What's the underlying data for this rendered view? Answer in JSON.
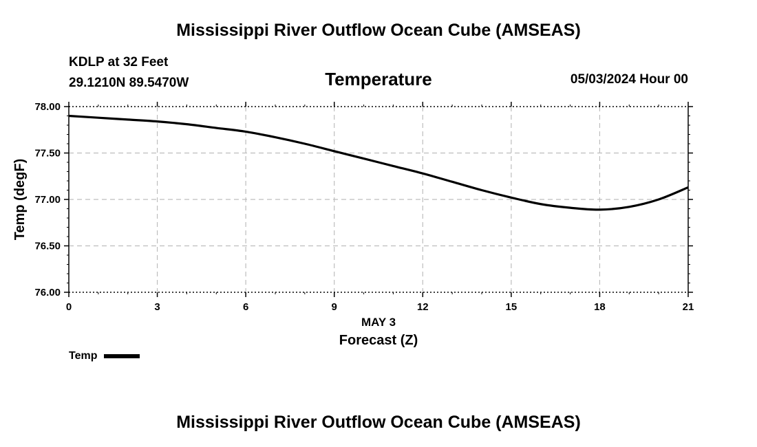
{
  "header": {
    "title": "Mississippi River Outflow Ocean Cube (AMSEAS)",
    "station": "KDLP at 32 Feet",
    "coords": "29.1210N  89.5470W",
    "variable": "Temperature",
    "datetime": "05/03/2024 Hour 00"
  },
  "footer": {
    "title": "Mississippi River Outflow Ocean Cube (AMSEAS)"
  },
  "chart_data": {
    "type": "line",
    "title": "Temperature",
    "xlabel": "Forecast (Z)",
    "xdate_label": "MAY 3",
    "ylabel": "Temp (degF)",
    "xlim": [
      0,
      21
    ],
    "ylim": [
      76.0,
      78.0
    ],
    "xticks": [
      0,
      3,
      6,
      9,
      12,
      15,
      18,
      21
    ],
    "yticks": [
      "76.00",
      "76.50",
      "77.00",
      "77.50",
      "78.00"
    ],
    "grid": true,
    "legend_placement": "bottom-left",
    "series": [
      {
        "name": "Temp",
        "color": "#000000",
        "x": [
          0,
          1,
          2,
          3,
          4,
          5,
          6,
          7,
          8,
          9,
          10,
          11,
          12,
          13,
          14,
          15,
          16,
          17,
          18,
          19,
          20,
          21
        ],
        "values": [
          77.9,
          77.88,
          77.86,
          77.84,
          77.81,
          77.77,
          77.73,
          77.67,
          77.6,
          77.52,
          77.44,
          77.36,
          77.28,
          77.19,
          77.1,
          77.02,
          76.95,
          76.91,
          76.89,
          76.92,
          77.0,
          77.13
        ]
      }
    ]
  }
}
